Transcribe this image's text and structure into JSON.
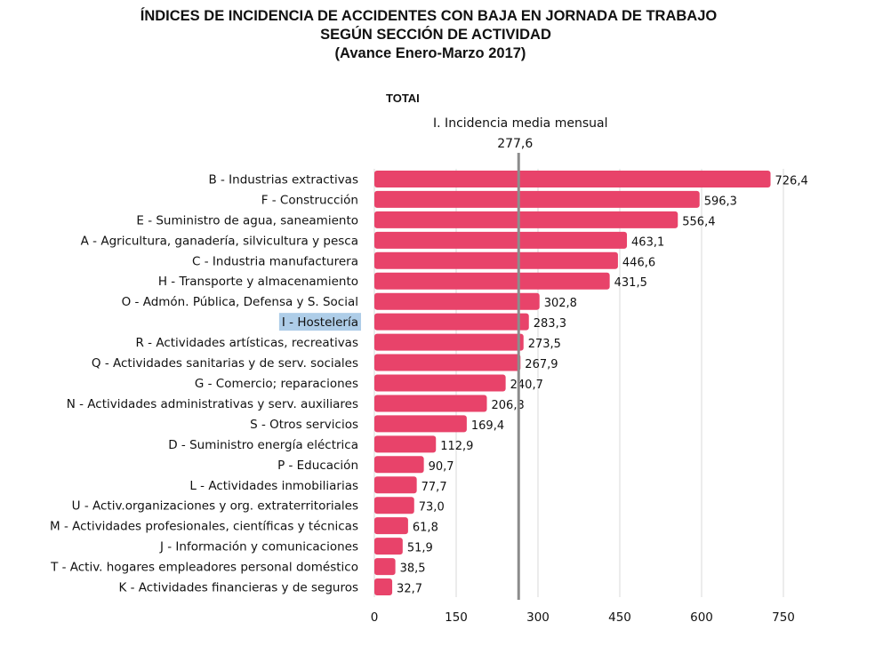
{
  "chart_data": {
    "type": "bar",
    "orientation": "horizontal",
    "title": [
      "ÍNDICES DE INCIDENCIA DE ACCIDENTES CON BAJA EN JORNADA DE TRABAJO",
      "SEGÚN SECCIÓN DE ACTIVIDAD",
      "(Avance Enero-Marzo 2017)"
    ],
    "subtitle": "TOTAI",
    "categories": [
      "B - Industrias extractivas",
      "F - Construcción",
      "E - Suministro de agua, saneamiento",
      "A - Agricultura, ganadería, silvicultura y pesca",
      "C - Industria manufacturera",
      "H - Transporte y almacenamiento",
      "O - Admón. Pública, Defensa y S. Social",
      "I - Hostelería",
      "R - Actividades artísticas, recreativas",
      "Q - Actividades sanitarias y de serv. sociales",
      "G - Comercio; reparaciones",
      "N - Actividades administrativas y serv. auxiliares",
      "S - Otros servicios",
      "D - Suministro energía eléctrica",
      "P - Educación",
      "L - Actividades inmobiliarias",
      "U - Activ.organizaciones y org. extraterritoriales",
      "M - Actividades profesionales, científicas y técnicas",
      "J - Información y comunicaciones",
      "T - Activ. hogares empleadores personal doméstico",
      "K - Actividades financieras y de seguros"
    ],
    "values": [
      726.4,
      596.3,
      556.4,
      463.1,
      446.6,
      431.5,
      302.8,
      283.3,
      273.5,
      267.9,
      240.7,
      206.3,
      169.4,
      112.9,
      90.7,
      77.7,
      73.0,
      61.8,
      51.9,
      38.5,
      32.7
    ],
    "value_labels": [
      "726,4",
      "596,3",
      "556,4",
      "463,1",
      "446,6",
      "431,5",
      "302,8",
      "283,3",
      "273,5",
      "267,9",
      "240,7",
      "206,3",
      "169,4",
      "112,9",
      "90,7",
      "77,7",
      "73,0",
      "61,8",
      "51,9",
      "38,5",
      "32,7"
    ],
    "highlighted_category": "I - Hostelería",
    "xlim": [
      0,
      750
    ],
    "xticks": [
      0,
      150,
      300,
      450,
      600,
      750
    ],
    "xtick_labels": [
      "0",
      "150",
      "300",
      "450",
      "600",
      "750"
    ],
    "xgrid": true,
    "reference_line": {
      "label": "I. Incidencia media mensual",
      "value": 277.6,
      "value_label": "277,6"
    },
    "colors": {
      "bar": "#e8436a",
      "highlight": "#aecde8",
      "reference_line": "#8c8c8c",
      "grid": "#d9d9d9"
    }
  }
}
